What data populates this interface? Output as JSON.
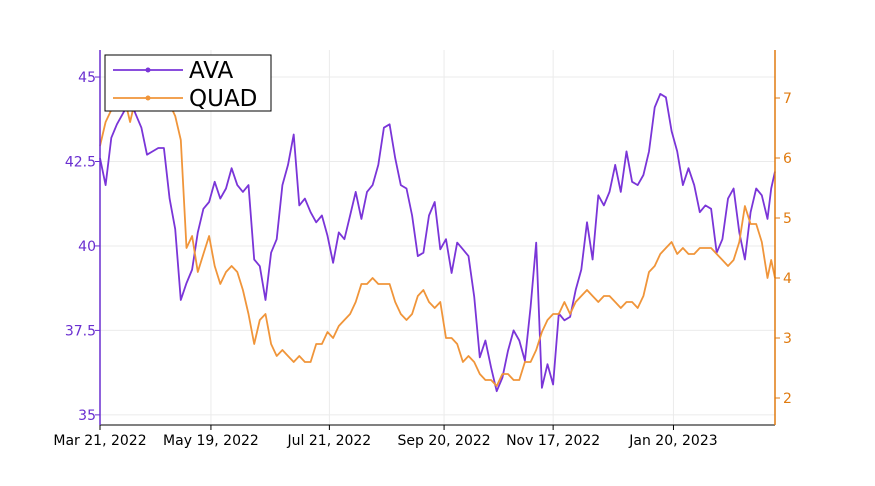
{
  "chart_data": {
    "type": "line",
    "x_type": "date",
    "xlim": [
      "2022-03-21",
      "2023-03-15"
    ],
    "x_ticks": [
      "2022-03-21",
      "2022-05-19",
      "2022-07-21",
      "2022-09-20",
      "2022-11-17",
      "2023-01-20"
    ],
    "x_tick_labels": [
      "Mar 21, 2022",
      "May 19, 2022",
      "Jul 21, 2022",
      "Sep 20, 2022",
      "Nov 17, 2022",
      "Jan 20, 2023"
    ],
    "grid": true,
    "legend_position": "top-left",
    "y_axes": {
      "left": {
        "ylim": [
          34.7,
          45.8
        ],
        "ticks": [
          35,
          37.5,
          40,
          42.5,
          45
        ],
        "tick_labels": [
          "35",
          "37.5",
          "40",
          "42.5",
          "45"
        ],
        "color": "#6a2fd0"
      },
      "right": {
        "ylim": [
          1.55,
          7.8
        ],
        "ticks": [
          2,
          3,
          4,
          5,
          6,
          7
        ],
        "tick_labels": [
          "2",
          "3",
          "4",
          "5",
          "6",
          "7"
        ],
        "color": "#e07b10"
      }
    },
    "series": [
      {
        "name": "AVA",
        "axis": "left",
        "color": "#7a35d8",
        "points": [
          [
            "2022-03-21",
            42.6
          ],
          [
            "2022-03-24",
            41.8
          ],
          [
            "2022-03-27",
            43.2
          ],
          [
            "2022-03-30",
            43.6
          ],
          [
            "2022-04-03",
            44.0
          ],
          [
            "2022-04-06",
            44.3
          ],
          [
            "2022-04-09",
            43.9
          ],
          [
            "2022-04-12",
            43.5
          ],
          [
            "2022-04-15",
            42.7
          ],
          [
            "2022-04-18",
            42.8
          ],
          [
            "2022-04-21",
            42.9
          ],
          [
            "2022-04-24",
            42.9
          ],
          [
            "2022-04-27",
            41.4
          ],
          [
            "2022-04-30",
            40.5
          ],
          [
            "2022-05-03",
            38.4
          ],
          [
            "2022-05-06",
            38.9
          ],
          [
            "2022-05-09",
            39.3
          ],
          [
            "2022-05-12",
            40.4
          ],
          [
            "2022-05-15",
            41.1
          ],
          [
            "2022-05-18",
            41.3
          ],
          [
            "2022-05-21",
            41.9
          ],
          [
            "2022-05-24",
            41.4
          ],
          [
            "2022-05-27",
            41.7
          ],
          [
            "2022-05-30",
            42.3
          ],
          [
            "2022-06-02",
            41.8
          ],
          [
            "2022-06-05",
            41.6
          ],
          [
            "2022-06-08",
            41.8
          ],
          [
            "2022-06-11",
            39.6
          ],
          [
            "2022-06-14",
            39.4
          ],
          [
            "2022-06-17",
            38.4
          ],
          [
            "2022-06-20",
            39.8
          ],
          [
            "2022-06-23",
            40.2
          ],
          [
            "2022-06-26",
            41.8
          ],
          [
            "2022-06-29",
            42.4
          ],
          [
            "2022-07-02",
            43.3
          ],
          [
            "2022-07-05",
            41.2
          ],
          [
            "2022-07-08",
            41.4
          ],
          [
            "2022-07-11",
            41.0
          ],
          [
            "2022-07-14",
            40.7
          ],
          [
            "2022-07-17",
            40.9
          ],
          [
            "2022-07-20",
            40.3
          ],
          [
            "2022-07-23",
            39.5
          ],
          [
            "2022-07-26",
            40.4
          ],
          [
            "2022-07-29",
            40.2
          ],
          [
            "2022-08-01",
            40.9
          ],
          [
            "2022-08-04",
            41.6
          ],
          [
            "2022-08-07",
            40.8
          ],
          [
            "2022-08-10",
            41.6
          ],
          [
            "2022-08-13",
            41.8
          ],
          [
            "2022-08-16",
            42.4
          ],
          [
            "2022-08-19",
            43.5
          ],
          [
            "2022-08-22",
            43.6
          ],
          [
            "2022-08-25",
            42.6
          ],
          [
            "2022-08-28",
            41.8
          ],
          [
            "2022-08-31",
            41.7
          ],
          [
            "2022-09-03",
            40.9
          ],
          [
            "2022-09-06",
            39.7
          ],
          [
            "2022-09-09",
            39.8
          ],
          [
            "2022-09-12",
            40.9
          ],
          [
            "2022-09-15",
            41.3
          ],
          [
            "2022-09-18",
            39.9
          ],
          [
            "2022-09-21",
            40.2
          ],
          [
            "2022-09-24",
            39.2
          ],
          [
            "2022-09-27",
            40.1
          ],
          [
            "2022-09-30",
            39.9
          ],
          [
            "2022-10-03",
            39.7
          ],
          [
            "2022-10-06",
            38.5
          ],
          [
            "2022-10-09",
            36.7
          ],
          [
            "2022-10-12",
            37.2
          ],
          [
            "2022-10-15",
            36.4
          ],
          [
            "2022-10-18",
            35.7
          ],
          [
            "2022-10-21",
            36.1
          ],
          [
            "2022-10-24",
            36.9
          ],
          [
            "2022-10-27",
            37.5
          ],
          [
            "2022-10-30",
            37.2
          ],
          [
            "2022-11-02",
            36.6
          ],
          [
            "2022-11-05",
            38.2
          ],
          [
            "2022-11-08",
            40.1
          ],
          [
            "2022-11-11",
            35.8
          ],
          [
            "2022-11-14",
            36.5
          ],
          [
            "2022-11-17",
            35.9
          ],
          [
            "2022-11-20",
            38.0
          ],
          [
            "2022-11-23",
            37.8
          ],
          [
            "2022-11-26",
            37.9
          ],
          [
            "2022-11-29",
            38.7
          ],
          [
            "2022-12-02",
            39.3
          ],
          [
            "2022-12-05",
            40.7
          ],
          [
            "2022-12-08",
            39.6
          ],
          [
            "2022-12-11",
            41.5
          ],
          [
            "2022-12-14",
            41.2
          ],
          [
            "2022-12-17",
            41.6
          ],
          [
            "2022-12-20",
            42.4
          ],
          [
            "2022-12-23",
            41.6
          ],
          [
            "2022-12-26",
            42.8
          ],
          [
            "2022-12-29",
            41.9
          ],
          [
            "2023-01-01",
            41.8
          ],
          [
            "2023-01-04",
            42.1
          ],
          [
            "2023-01-07",
            42.8
          ],
          [
            "2023-01-10",
            44.1
          ],
          [
            "2023-01-13",
            44.5
          ],
          [
            "2023-01-16",
            44.4
          ],
          [
            "2023-01-19",
            43.4
          ],
          [
            "2023-01-22",
            42.8
          ],
          [
            "2023-01-25",
            41.8
          ],
          [
            "2023-01-28",
            42.3
          ],
          [
            "2023-01-31",
            41.8
          ],
          [
            "2023-02-03",
            41.0
          ],
          [
            "2023-02-06",
            41.2
          ],
          [
            "2023-02-09",
            41.1
          ],
          [
            "2023-02-12",
            39.8
          ],
          [
            "2023-02-15",
            40.2
          ],
          [
            "2023-02-18",
            41.4
          ],
          [
            "2023-02-21",
            41.7
          ],
          [
            "2023-02-24",
            40.4
          ],
          [
            "2023-02-27",
            39.6
          ],
          [
            "2023-03-02",
            41.0
          ],
          [
            "2023-03-05",
            41.7
          ],
          [
            "2023-03-08",
            41.5
          ],
          [
            "2023-03-11",
            40.8
          ],
          [
            "2023-03-13",
            41.7
          ],
          [
            "2023-03-15",
            42.2
          ]
        ]
      },
      {
        "name": "QUAD",
        "axis": "right",
        "color": "#f0953a",
        "points": [
          [
            "2022-03-21",
            6.2
          ],
          [
            "2022-03-24",
            6.6
          ],
          [
            "2022-03-27",
            6.8
          ],
          [
            "2022-03-30",
            6.9
          ],
          [
            "2022-04-03",
            7.0
          ],
          [
            "2022-04-06",
            6.6
          ],
          [
            "2022-04-09",
            7.0
          ],
          [
            "2022-04-12",
            6.9
          ],
          [
            "2022-04-15",
            6.8
          ],
          [
            "2022-04-18",
            6.9
          ],
          [
            "2022-04-21",
            6.8
          ],
          [
            "2022-04-24",
            6.9
          ],
          [
            "2022-04-27",
            6.9
          ],
          [
            "2022-04-30",
            6.7
          ],
          [
            "2022-05-03",
            6.3
          ],
          [
            "2022-05-06",
            4.5
          ],
          [
            "2022-05-09",
            4.7
          ],
          [
            "2022-05-12",
            4.1
          ],
          [
            "2022-05-15",
            4.4
          ],
          [
            "2022-05-18",
            4.7
          ],
          [
            "2022-05-21",
            4.2
          ],
          [
            "2022-05-24",
            3.9
          ],
          [
            "2022-05-27",
            4.1
          ],
          [
            "2022-05-30",
            4.2
          ],
          [
            "2022-06-02",
            4.1
          ],
          [
            "2022-06-05",
            3.8
          ],
          [
            "2022-06-08",
            3.4
          ],
          [
            "2022-06-11",
            2.9
          ],
          [
            "2022-06-14",
            3.3
          ],
          [
            "2022-06-17",
            3.4
          ],
          [
            "2022-06-20",
            2.9
          ],
          [
            "2022-06-23",
            2.7
          ],
          [
            "2022-06-26",
            2.8
          ],
          [
            "2022-06-29",
            2.7
          ],
          [
            "2022-07-02",
            2.6
          ],
          [
            "2022-07-05",
            2.7
          ],
          [
            "2022-07-08",
            2.6
          ],
          [
            "2022-07-11",
            2.6
          ],
          [
            "2022-07-14",
            2.9
          ],
          [
            "2022-07-17",
            2.9
          ],
          [
            "2022-07-20",
            3.1
          ],
          [
            "2022-07-23",
            3.0
          ],
          [
            "2022-07-26",
            3.2
          ],
          [
            "2022-07-29",
            3.3
          ],
          [
            "2022-08-01",
            3.4
          ],
          [
            "2022-08-04",
            3.6
          ],
          [
            "2022-08-07",
            3.9
          ],
          [
            "2022-08-10",
            3.9
          ],
          [
            "2022-08-13",
            4.0
          ],
          [
            "2022-08-16",
            3.9
          ],
          [
            "2022-08-19",
            3.9
          ],
          [
            "2022-08-22",
            3.9
          ],
          [
            "2022-08-25",
            3.6
          ],
          [
            "2022-08-28",
            3.4
          ],
          [
            "2022-08-31",
            3.3
          ],
          [
            "2022-09-03",
            3.4
          ],
          [
            "2022-09-06",
            3.7
          ],
          [
            "2022-09-09",
            3.8
          ],
          [
            "2022-09-12",
            3.6
          ],
          [
            "2022-09-15",
            3.5
          ],
          [
            "2022-09-18",
            3.6
          ],
          [
            "2022-09-21",
            3.0
          ],
          [
            "2022-09-24",
            3.0
          ],
          [
            "2022-09-27",
            2.9
          ],
          [
            "2022-09-30",
            2.6
          ],
          [
            "2022-10-03",
            2.7
          ],
          [
            "2022-10-06",
            2.6
          ],
          [
            "2022-10-09",
            2.4
          ],
          [
            "2022-10-12",
            2.3
          ],
          [
            "2022-10-15",
            2.3
          ],
          [
            "2022-10-18",
            2.2
          ],
          [
            "2022-10-21",
            2.4
          ],
          [
            "2022-10-24",
            2.4
          ],
          [
            "2022-10-27",
            2.3
          ],
          [
            "2022-10-30",
            2.3
          ],
          [
            "2022-11-02",
            2.6
          ],
          [
            "2022-11-05",
            2.6
          ],
          [
            "2022-11-08",
            2.8
          ],
          [
            "2022-11-11",
            3.1
          ],
          [
            "2022-11-14",
            3.3
          ],
          [
            "2022-11-17",
            3.4
          ],
          [
            "2022-11-20",
            3.4
          ],
          [
            "2022-11-23",
            3.6
          ],
          [
            "2022-11-26",
            3.4
          ],
          [
            "2022-11-29",
            3.6
          ],
          [
            "2022-12-02",
            3.7
          ],
          [
            "2022-12-05",
            3.8
          ],
          [
            "2022-12-08",
            3.7
          ],
          [
            "2022-12-11",
            3.6
          ],
          [
            "2022-12-14",
            3.7
          ],
          [
            "2022-12-17",
            3.7
          ],
          [
            "2022-12-20",
            3.6
          ],
          [
            "2022-12-23",
            3.5
          ],
          [
            "2022-12-26",
            3.6
          ],
          [
            "2022-12-29",
            3.6
          ],
          [
            "2023-01-01",
            3.5
          ],
          [
            "2023-01-04",
            3.7
          ],
          [
            "2023-01-07",
            4.1
          ],
          [
            "2023-01-10",
            4.2
          ],
          [
            "2023-01-13",
            4.4
          ],
          [
            "2023-01-16",
            4.5
          ],
          [
            "2023-01-19",
            4.6
          ],
          [
            "2023-01-22",
            4.4
          ],
          [
            "2023-01-25",
            4.5
          ],
          [
            "2023-01-28",
            4.4
          ],
          [
            "2023-01-31",
            4.4
          ],
          [
            "2023-02-03",
            4.5
          ],
          [
            "2023-02-06",
            4.5
          ],
          [
            "2023-02-09",
            4.5
          ],
          [
            "2023-02-12",
            4.4
          ],
          [
            "2023-02-15",
            4.3
          ],
          [
            "2023-02-18",
            4.2
          ],
          [
            "2023-02-21",
            4.3
          ],
          [
            "2023-02-24",
            4.6
          ],
          [
            "2023-02-27",
            5.2
          ],
          [
            "2023-03-02",
            4.9
          ],
          [
            "2023-03-05",
            4.9
          ],
          [
            "2023-03-08",
            4.6
          ],
          [
            "2023-03-11",
            4.0
          ],
          [
            "2023-03-13",
            4.3
          ],
          [
            "2023-03-15",
            4.0
          ]
        ]
      }
    ]
  }
}
